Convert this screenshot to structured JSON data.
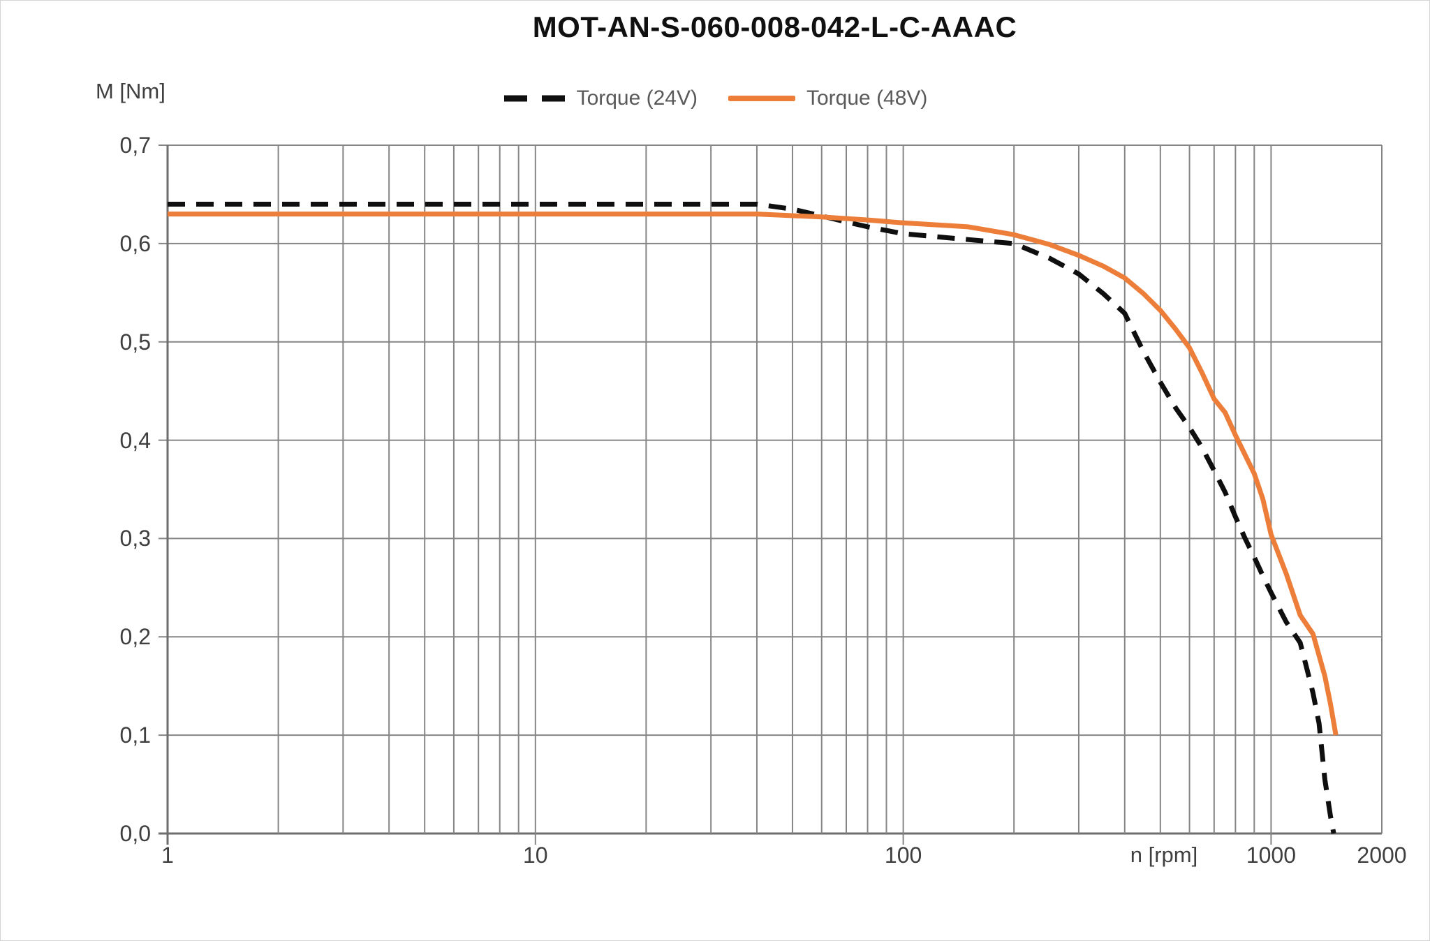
{
  "window": {
    "background": "#ffffff",
    "frame_border": "#d4d4d4"
  },
  "title": {
    "text": "MOT-AN-S-060-008-042-L-C-AAAC",
    "color": "#101010"
  },
  "legend": {
    "text_color": "#595959",
    "items": [
      {
        "label": "Torque (24V)",
        "color": "#0f0f0f",
        "style": "dashed"
      },
      {
        "label": "Torque (48V)",
        "color": "#ED7E3A",
        "style": "solid"
      }
    ]
  },
  "axis": {
    "y_title": "M [Nm]",
    "x_title": "n [rpm]",
    "y_ticks": [
      {
        "label": "0,0",
        "value": 0.0
      },
      {
        "label": "0,1",
        "value": 0.1
      },
      {
        "label": "0,2",
        "value": 0.2
      },
      {
        "label": "0,3",
        "value": 0.3
      },
      {
        "label": "0,4",
        "value": 0.4
      },
      {
        "label": "0,5",
        "value": 0.5
      },
      {
        "label": "0,6",
        "value": 0.6
      },
      {
        "label": "0,7",
        "value": 0.7
      }
    ],
    "x_ticks": [
      {
        "label": "1",
        "value": 1,
        "tick": true
      },
      {
        "label": "10",
        "value": 10,
        "tick": true
      },
      {
        "label": "100",
        "value": 100,
        "tick": true
      },
      {
        "label": "1000",
        "value": 1000,
        "tick": true
      },
      {
        "label": "2000",
        "value": 2000,
        "tick": false
      }
    ],
    "grid_color": "#858585",
    "axis_color": "#6e6e6e",
    "tick_label_color": "#3f3f3f"
  },
  "chart_data": {
    "type": "line",
    "title": "MOT-AN-S-060-008-042-L-C-AAAC",
    "xlabel": "n [rpm]",
    "ylabel": "M [Nm]",
    "x_scale": "log",
    "xlim": [
      1,
      2000
    ],
    "ylim": [
      0.0,
      0.7
    ],
    "grid": true,
    "legend_position": "top-center",
    "series": [
      {
        "name": "Torque (24V)",
        "color": "#0f0f0f",
        "line_style": "dashed",
        "points": [
          [
            1,
            0.64
          ],
          [
            40,
            0.64
          ],
          [
            50,
            0.635
          ],
          [
            60,
            0.628
          ],
          [
            70,
            0.622
          ],
          [
            80,
            0.617
          ],
          [
            100,
            0.61
          ],
          [
            150,
            0.604
          ],
          [
            200,
            0.6
          ],
          [
            250,
            0.585
          ],
          [
            300,
            0.569
          ],
          [
            350,
            0.549
          ],
          [
            400,
            0.529
          ],
          [
            450,
            0.49
          ],
          [
            500,
            0.459
          ],
          [
            550,
            0.433
          ],
          [
            600,
            0.413
          ],
          [
            650,
            0.392
          ],
          [
            700,
            0.369
          ],
          [
            750,
            0.347
          ],
          [
            800,
            0.322
          ],
          [
            850,
            0.3
          ],
          [
            900,
            0.281
          ],
          [
            950,
            0.262
          ],
          [
            1000,
            0.245
          ],
          [
            1100,
            0.215
          ],
          [
            1200,
            0.194
          ],
          [
            1250,
            0.168
          ],
          [
            1300,
            0.143
          ],
          [
            1350,
            0.112
          ],
          [
            1400,
            0.055
          ],
          [
            1450,
            0.018
          ],
          [
            1480,
            0.0
          ]
        ]
      },
      {
        "name": "Torque (48V)",
        "color": "#ED7E3A",
        "line_style": "solid",
        "points": [
          [
            1,
            0.63
          ],
          [
            40,
            0.63
          ],
          [
            60,
            0.627
          ],
          [
            80,
            0.624
          ],
          [
            100,
            0.621
          ],
          [
            150,
            0.617
          ],
          [
            200,
            0.609
          ],
          [
            250,
            0.599
          ],
          [
            300,
            0.588
          ],
          [
            350,
            0.577
          ],
          [
            400,
            0.565
          ],
          [
            450,
            0.549
          ],
          [
            500,
            0.532
          ],
          [
            550,
            0.513
          ],
          [
            600,
            0.494
          ],
          [
            650,
            0.468
          ],
          [
            700,
            0.442
          ],
          [
            750,
            0.428
          ],
          [
            800,
            0.405
          ],
          [
            850,
            0.385
          ],
          [
            900,
            0.366
          ],
          [
            950,
            0.34
          ],
          [
            1000,
            0.304
          ],
          [
            1100,
            0.264
          ],
          [
            1200,
            0.222
          ],
          [
            1300,
            0.203
          ],
          [
            1400,
            0.16
          ],
          [
            1450,
            0.132
          ],
          [
            1500,
            0.1
          ]
        ]
      }
    ]
  }
}
